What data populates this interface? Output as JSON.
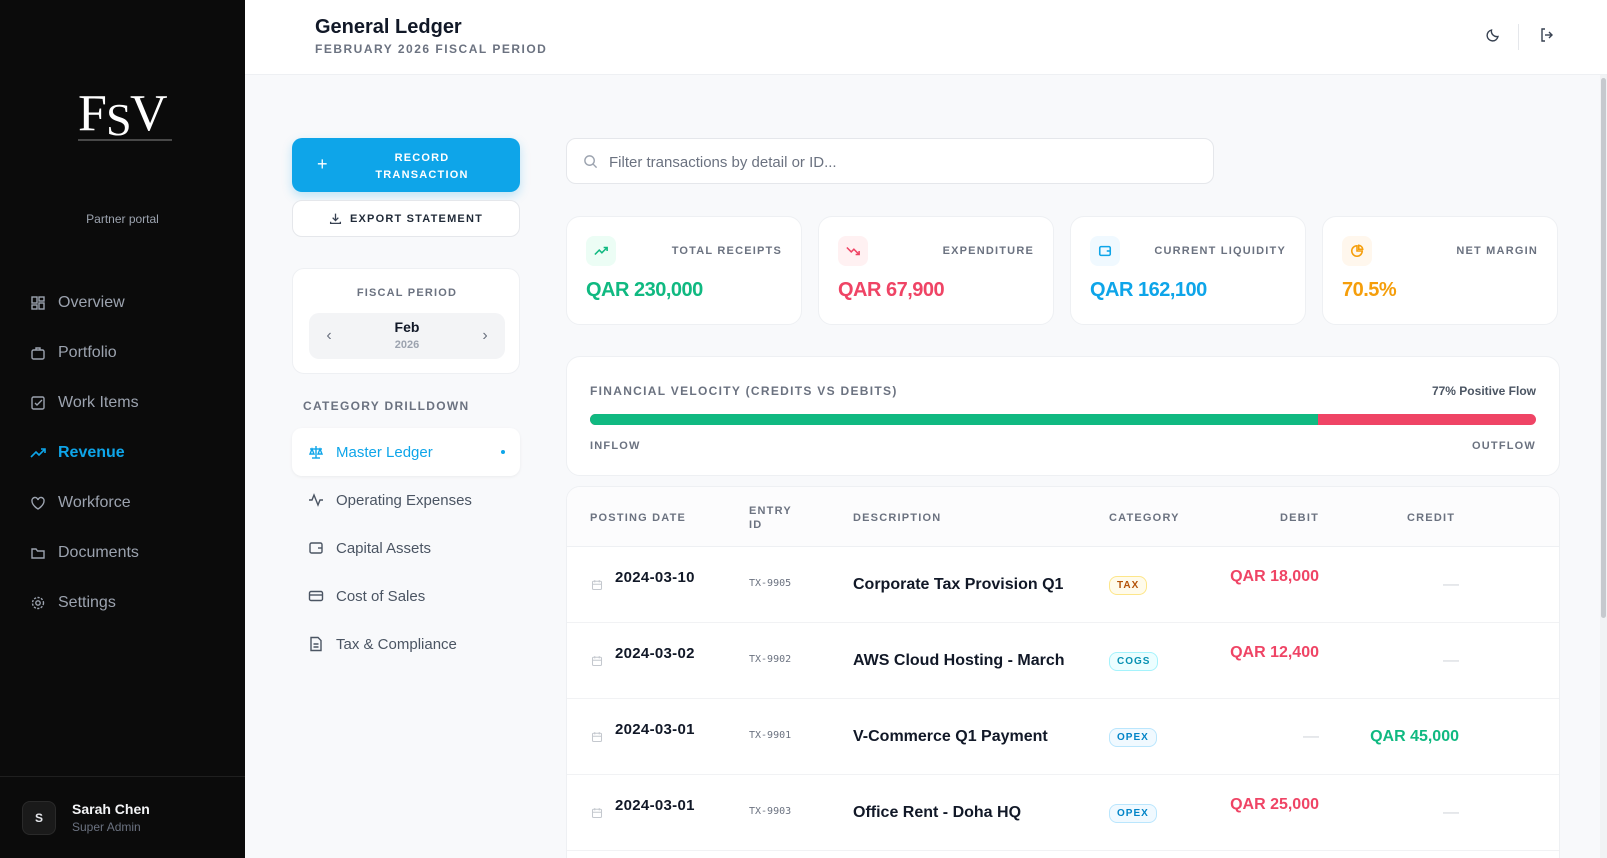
{
  "sidebar": {
    "portal_text": "Partner portal",
    "nav": [
      {
        "label": "Overview",
        "icon": "grid-icon"
      },
      {
        "label": "Portfolio",
        "icon": "briefcase-icon"
      },
      {
        "label": "Work Items",
        "icon": "checkbox-icon"
      },
      {
        "label": "Revenue",
        "icon": "trending-up-icon",
        "active": true
      },
      {
        "label": "Workforce",
        "icon": "heart-icon"
      },
      {
        "label": "Documents",
        "icon": "folder-icon"
      },
      {
        "label": "Settings",
        "icon": "gear-icon"
      }
    ],
    "user": {
      "initial": "S",
      "name": "Sarah Chen",
      "role": "Super Admin"
    }
  },
  "header": {
    "title": "General Ledger",
    "subtitle": "FEBRUARY 2026 FISCAL PERIOD"
  },
  "actions": {
    "record_label": "RECORD TRANSACTION",
    "export_label": "EXPORT STATEMENT"
  },
  "fiscal": {
    "label": "FISCAL PERIOD",
    "month": "Feb",
    "year": "2026"
  },
  "drilldown": {
    "label": "CATEGORY DRILLDOWN",
    "items": [
      {
        "label": "Master Ledger",
        "icon": "scale-icon",
        "active": true
      },
      {
        "label": "Operating Expenses",
        "icon": "activity-icon"
      },
      {
        "label": "Capital Assets",
        "icon": "wallet-icon"
      },
      {
        "label": "Cost of Sales",
        "icon": "credit-card-icon"
      },
      {
        "label": "Tax & Compliance",
        "icon": "file-text-icon"
      }
    ]
  },
  "search": {
    "placeholder": "Filter transactions by detail or ID..."
  },
  "stats": [
    {
      "label": "TOTAL RECEIPTS",
      "value": "QAR 230,000",
      "color": "#10b981",
      "bg": "#ecfdf5",
      "icon": "trending-up-icon"
    },
    {
      "label": "EXPENDITURE",
      "value": "QAR 67,900",
      "color": "#ef4465",
      "bg": "#fff1f2",
      "icon": "trending-down-icon"
    },
    {
      "label": "CURRENT LIQUIDITY",
      "value": "QAR 162,100",
      "color": "#0ea5e9",
      "bg": "#f0f9ff",
      "icon": "wallet-icon"
    },
    {
      "label": "NET MARGIN",
      "value": "70.5%",
      "color": "#f59e0b",
      "bg": "#fff7ed",
      "icon": "pie-chart-icon"
    }
  ],
  "velocity": {
    "title": "FINANCIAL VELOCITY (CREDITS VS DEBITS)",
    "flow_text": "77% Positive Flow",
    "inflow_percent": 77,
    "inflow_label": "INFLOW",
    "outflow_label": "OUTFLOW"
  },
  "table": {
    "columns": [
      "POSTING DATE",
      "ENTRY ID",
      "DESCRIPTION",
      "CATEGORY",
      "DEBIT",
      "CREDIT"
    ],
    "rows": [
      {
        "date": "2024-03-10",
        "id": "TX-9905",
        "desc": "Corporate Tax Provision Q1",
        "category": "TAX",
        "debit": "QAR 18,000",
        "credit": "—"
      },
      {
        "date": "2024-03-02",
        "id": "TX-9902",
        "desc": "AWS Cloud Hosting - March",
        "category": "COGS",
        "debit": "QAR 12,400",
        "credit": "—"
      },
      {
        "date": "2024-03-01",
        "id": "TX-9901",
        "desc": "V-Commerce Q1 Payment",
        "category": "OPEX",
        "debit": "—",
        "credit": "QAR 45,000"
      },
      {
        "date": "2024-03-01",
        "id": "TX-9903",
        "desc": "Office Rent - Doha HQ",
        "category": "OPEX",
        "debit": "QAR 25,000",
        "credit": "—"
      }
    ]
  },
  "category_colors": {
    "TAX": {
      "fg": "#b45309",
      "bg": "#fffbeb",
      "border": "#fde68a"
    },
    "COGS": {
      "fg": "#0891b2",
      "bg": "#ecfeff",
      "border": "#a5f3fc"
    },
    "OPEX": {
      "fg": "#0284c7",
      "bg": "#f0f9ff",
      "border": "#bae6fd"
    }
  }
}
